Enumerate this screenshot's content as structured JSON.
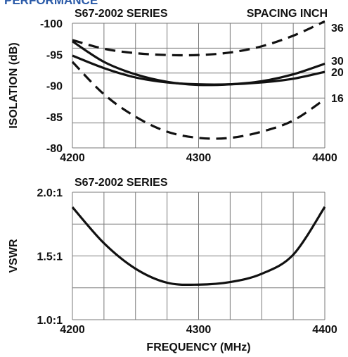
{
  "header": {
    "section_fragment": "PERFORMANCE"
  },
  "chart_data": [
    {
      "type": "line",
      "title": "S67-2002 SERIES",
      "legend_title": "SPACING INCH",
      "xlabel": "",
      "ylabel": "ISOLATION (dB)",
      "xlim": [
        4200,
        4400
      ],
      "ylim": [
        -80,
        -100
      ],
      "y_inverted": true,
      "grid": true,
      "xticks": [
        4200,
        4300,
        4400
      ],
      "xtick_labels": [
        "4200",
        "4300",
        "4400"
      ],
      "yticks": [
        -100,
        -95,
        -90,
        -85,
        -80
      ],
      "ytick_labels": [
        "-100",
        "-95",
        "-90",
        "-85",
        "-80"
      ],
      "series": [
        {
          "name": "36",
          "style": "dashed",
          "x": [
            4200,
            4225,
            4250,
            4275,
            4300,
            4325,
            4350,
            4375,
            4400
          ],
          "y": [
            -97.3,
            -95.9,
            -95.2,
            -94.9,
            -94.9,
            -95.3,
            -96.3,
            -98.0,
            -100.3
          ]
        },
        {
          "name": "30",
          "style": "solid",
          "x": [
            4200,
            4225,
            4250,
            4275,
            4300,
            4325,
            4350,
            4375,
            4400
          ],
          "y": [
            -97.1,
            -93.8,
            -91.8,
            -90.6,
            -90.1,
            -90.2,
            -90.7,
            -91.8,
            -93.5
          ]
        },
        {
          "name": "20",
          "style": "solid",
          "x": [
            4200,
            4225,
            4250,
            4275,
            4300,
            4325,
            4350,
            4375,
            4400
          ],
          "y": [
            -94.8,
            -92.8,
            -91.3,
            -90.5,
            -90.2,
            -90.2,
            -90.5,
            -91.1,
            -92.2
          ]
        },
        {
          "name": "16",
          "style": "dashed",
          "x": [
            4200,
            4225,
            4250,
            4275,
            4300,
            4325,
            4350,
            4375,
            4400
          ],
          "y": [
            -93.8,
            -88.6,
            -85.0,
            -82.6,
            -81.6,
            -81.6,
            -82.6,
            -84.4,
            -87.8
          ]
        }
      ]
    },
    {
      "type": "line",
      "title": "S67-2002 SERIES",
      "xlabel": "FREQUENCY (MHz)",
      "ylabel": "VSWR",
      "xlim": [
        4200,
        4400
      ],
      "ylim": [
        1.0,
        2.0
      ],
      "grid": true,
      "xticks": [
        4200,
        4300,
        4400
      ],
      "xtick_labels": [
        "4200",
        "4300",
        "4400"
      ],
      "yticks": [
        1.0,
        1.5,
        2.0
      ],
      "ytick_labels": [
        "1.0:1",
        "1.5:1",
        "2.0:1"
      ],
      "series": [
        {
          "style": "solid",
          "x": [
            4200,
            4225,
            4250,
            4275,
            4300,
            4325,
            4350,
            4375,
            4400
          ],
          "y": [
            1.883,
            1.6,
            1.4,
            1.29,
            1.275,
            1.295,
            1.36,
            1.51,
            1.885
          ]
        }
      ]
    }
  ]
}
